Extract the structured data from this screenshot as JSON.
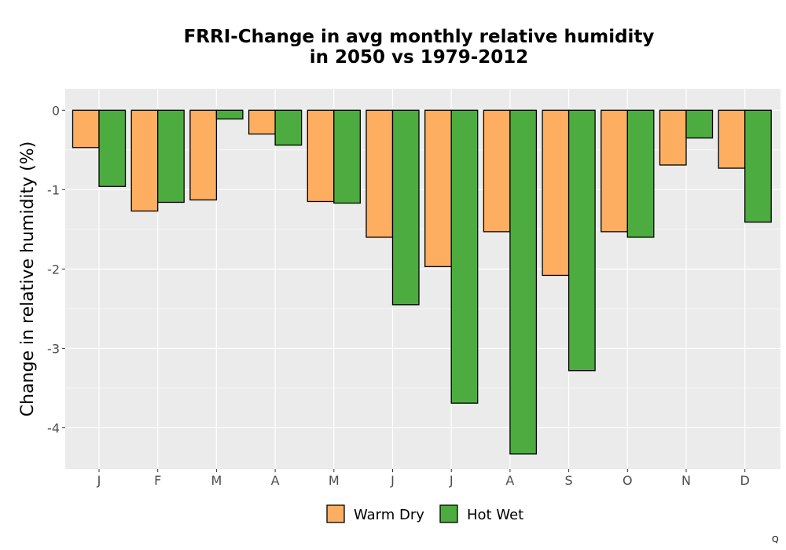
{
  "chart_data": {
    "type": "bar",
    "title": [
      "FRRI-Change in avg monthly relative humidity",
      "in 2050 vs 1979-2012"
    ],
    "xlabel": "",
    "ylabel": "Change in relative humidity (%)",
    "categories": [
      "J",
      "F",
      "M",
      "A",
      "M",
      "J",
      "J",
      "A",
      "S",
      "O",
      "N",
      "D"
    ],
    "series": [
      {
        "name": "Warm Dry",
        "color": "#FDAE61",
        "values": [
          -0.47,
          -1.27,
          -1.13,
          -0.3,
          -1.15,
          -1.6,
          -1.97,
          -1.53,
          -2.08,
          -1.53,
          -0.69,
          -0.73
        ]
      },
      {
        "name": "Hot Wet",
        "color": "#4DAC3F",
        "values": [
          -0.96,
          -1.16,
          -0.11,
          -0.44,
          -1.17,
          -2.45,
          -3.69,
          -4.33,
          -3.28,
          -1.6,
          -0.35,
          -1.41
        ]
      }
    ],
    "ylim": [
      -4.52,
      0.27
    ],
    "yticks": [
      0,
      -1,
      -2,
      -3,
      -4
    ],
    "ytick_labels": [
      "0",
      "-1",
      "-2",
      "-3",
      "-4"
    ],
    "grid": true,
    "panel_background": "#EBEBEB",
    "grid_color": "#FFFFFF",
    "bar_outline": "#000000",
    "legend_position": "bottom"
  },
  "watermark": "Q"
}
